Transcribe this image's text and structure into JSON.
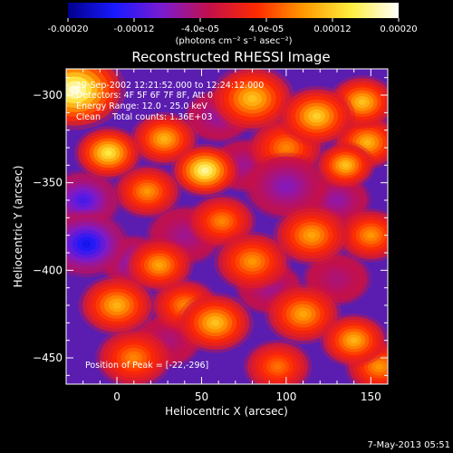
{
  "colorbar": {
    "ticks": [
      "-0.00020",
      "-0.00012",
      "-4.0e-05",
      "4.0e-05",
      "0.00012",
      "0.00020"
    ],
    "tick_values": [
      -0.0002,
      -0.00012,
      -4e-05,
      4e-05,
      0.00012,
      0.0002
    ],
    "range": [
      -0.0002,
      0.0002
    ],
    "units_label": "(photons cm⁻² s⁻¹ asec⁻²)",
    "colormap_stops": [
      "#00008c",
      "#1a1aff",
      "#7b1bd0",
      "#c4104a",
      "#ff2a00",
      "#ff9a00",
      "#ffee40",
      "#ffffff"
    ]
  },
  "annotations": {
    "time_range": "19-Sep-2002 12:21:52.000 to 12:24:12.000",
    "detectors": "Detectors: 4F 5F 6F 7F 8F, Att 0",
    "energy_range": "Energy Range: 12.0 - 25.0 keV",
    "algorithm": "Clean",
    "total_counts": "Total counts: 1.36E+03",
    "peak_position": "Position of Peak = [-22,-296]"
  },
  "footer_date": "7-May-2013 05:51",
  "chart_data": {
    "type": "heatmap",
    "title": "Reconstructed RHESSI Image",
    "xlabel": "Heliocentric X (arcsec)",
    "ylabel": "Heliocentric Y (arcsec)",
    "xlim": [
      -30,
      160
    ],
    "ylim": [
      -465,
      -285
    ],
    "x_ticks": [
      0,
      50,
      100,
      150
    ],
    "y_ticks": [
      -300,
      -350,
      -400,
      -450
    ],
    "x_tick_labels": [
      "0",
      "50",
      "100",
      "150"
    ],
    "y_tick_labels": [
      "−300",
      "−350",
      "−400",
      "−450"
    ],
    "peak": [
      -22,
      -296
    ],
    "blobs": [
      {
        "x": -25,
        "y": -297,
        "v": 0.0002,
        "s": 12
      },
      {
        "x": 52,
        "y": -343,
        "v": 0.00018,
        "s": 8
      },
      {
        "x": -5,
        "y": -333,
        "v": 0.00015,
        "s": 8
      },
      {
        "x": 28,
        "y": -325,
        "v": 0.00011,
        "s": 8
      },
      {
        "x": 80,
        "y": -302,
        "v": 0.00012,
        "s": 10
      },
      {
        "x": 118,
        "y": -312,
        "v": 0.00013,
        "s": 9
      },
      {
        "x": 145,
        "y": -304,
        "v": 0.00012,
        "s": 8
      },
      {
        "x": 148,
        "y": -327,
        "v": 0.00011,
        "s": 8
      },
      {
        "x": 135,
        "y": -340,
        "v": 0.00012,
        "s": 7
      },
      {
        "x": 100,
        "y": -330,
        "v": 8e-05,
        "s": 9
      },
      {
        "x": 18,
        "y": -355,
        "v": 9e-05,
        "s": 8
      },
      {
        "x": 62,
        "y": -372,
        "v": 8e-05,
        "s": 8
      },
      {
        "x": 80,
        "y": -395,
        "v": 9e-05,
        "s": 9
      },
      {
        "x": 115,
        "y": -380,
        "v": 0.0001,
        "s": 9
      },
      {
        "x": 150,
        "y": -380,
        "v": 9e-05,
        "s": 8
      },
      {
        "x": 25,
        "y": -397,
        "v": 0.0001,
        "s": 8
      },
      {
        "x": 0,
        "y": -420,
        "v": 0.00011,
        "s": 9
      },
      {
        "x": 58,
        "y": -430,
        "v": 0.00012,
        "s": 9
      },
      {
        "x": 40,
        "y": -420,
        "v": 8e-05,
        "s": 8
      },
      {
        "x": 110,
        "y": -425,
        "v": 0.0001,
        "s": 9
      },
      {
        "x": 140,
        "y": -440,
        "v": 0.00011,
        "s": 8
      },
      {
        "x": 155,
        "y": -455,
        "v": 9e-05,
        "s": 8
      },
      {
        "x": 10,
        "y": -450,
        "v": 8e-05,
        "s": 9
      },
      {
        "x": 95,
        "y": -455,
        "v": 7e-05,
        "s": 8
      },
      {
        "x": -18,
        "y": -385,
        "v": -0.00016,
        "s": 10
      },
      {
        "x": -20,
        "y": -360,
        "v": -0.00012,
        "s": 9
      },
      {
        "x": 10,
        "y": -395,
        "v": -9e-05,
        "s": 8
      },
      {
        "x": 100,
        "y": -352,
        "v": -8e-05,
        "s": 10
      },
      {
        "x": 75,
        "y": -340,
        "v": -6e-05,
        "s": 8
      },
      {
        "x": 130,
        "y": -360,
        "v": -7e-05,
        "s": 8
      },
      {
        "x": 40,
        "y": -380,
        "v": -6e-05,
        "s": 9
      },
      {
        "x": 90,
        "y": -410,
        "v": -6e-05,
        "s": 8
      },
      {
        "x": 60,
        "y": -312,
        "v": -7e-05,
        "s": 8
      },
      {
        "x": 30,
        "y": -440,
        "v": -5e-05,
        "s": 8
      },
      {
        "x": 130,
        "y": -405,
        "v": -5e-05,
        "s": 8
      }
    ]
  }
}
